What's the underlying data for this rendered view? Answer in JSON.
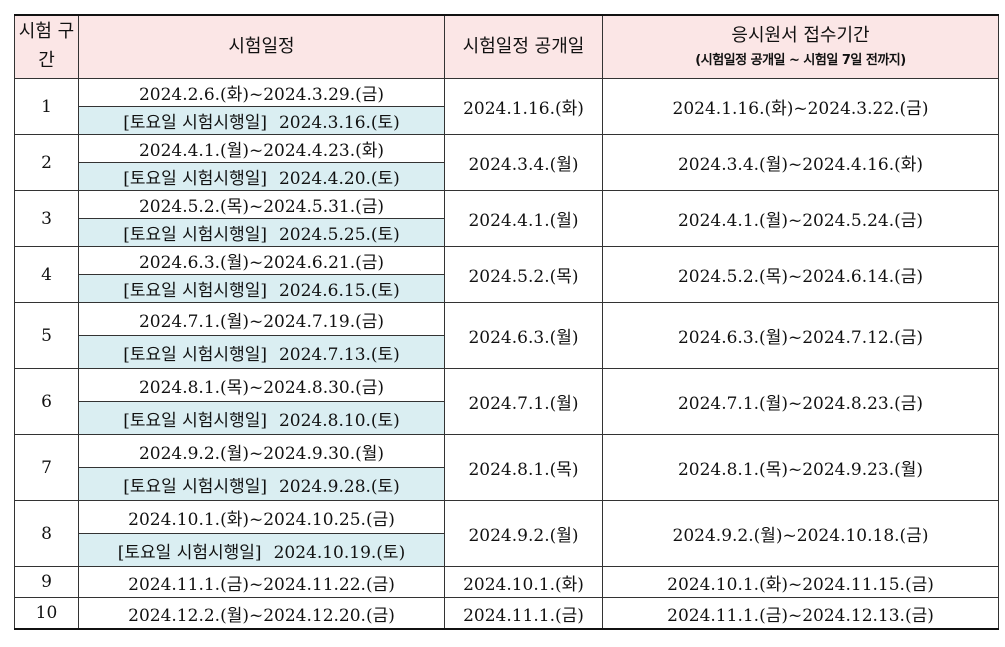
{
  "headers": {
    "period": "시험 구간",
    "schedule": "시험일정",
    "announce": "시험일정 공개일",
    "apply": "응시원서 접수기간",
    "apply_note": "(시험일정 공개일 ~ 시험일 7일 전까지)"
  },
  "rows": [
    {
      "period": "1",
      "schedule": "2024.2.6.(화)~2024.3.29.(금)",
      "saturday_label": "[토요일 시험시행일]",
      "saturday_date": "2024.3.16.(토)",
      "announce": "2024.1.16.(화)",
      "apply": "2024.1.16.(화)~2024.3.22.(금)"
    },
    {
      "period": "2",
      "schedule": "2024.4.1.(월)~2024.4.23.(화)",
      "saturday_label": "[토요일 시험시행일]",
      "saturday_date": "2024.4.20.(토)",
      "announce": "2024.3.4.(월)",
      "apply": "2024.3.4.(월)~2024.4.16.(화)"
    },
    {
      "period": "3",
      "schedule": "2024.5.2.(목)~2024.5.31.(금)",
      "saturday_label": "[토요일 시험시행일]",
      "saturday_date": "2024.5.25.(토)",
      "announce": "2024.4.1.(월)",
      "apply": "2024.4.1.(월)~2024.5.24.(금)"
    },
    {
      "period": "4",
      "schedule": "2024.6.3.(월)~2024.6.21.(금)",
      "saturday_label": "[토요일 시험시행일]",
      "saturday_date": "2024.6.15.(토)",
      "announce": "2024.5.2.(목)",
      "apply": "2024.5.2.(목)~2024.6.14.(금)"
    },
    {
      "period": "5",
      "schedule": "2024.7.1.(월)~2024.7.19.(금)",
      "saturday_label": "[토요일 시험시행일]",
      "saturday_date": "2024.7.13.(토)",
      "announce": "2024.6.3.(월)",
      "apply": "2024.6.3.(월)~2024.7.12.(금)"
    },
    {
      "period": "6",
      "schedule": "2024.8.1.(목)~2024.8.30.(금)",
      "saturday_label": "[토요일 시험시행일]",
      "saturday_date": "2024.8.10.(토)",
      "announce": "2024.7.1.(월)",
      "apply": "2024.7.1.(월)~2024.8.23.(금)"
    },
    {
      "period": "7",
      "schedule": "2024.9.2.(월)~2024.9.30.(월)",
      "saturday_label": "[토요일 시험시행일]",
      "saturday_date": "2024.9.28.(토)",
      "announce": "2024.8.1.(목)",
      "apply": "2024.8.1.(목)~2024.9.23.(월)"
    },
    {
      "period": "8",
      "schedule": "2024.10.1.(화)~2024.10.25.(금)",
      "saturday_label": "[토요일 시험시행일]",
      "saturday_date": "2024.10.19.(토)",
      "announce": "2024.9.2.(월)",
      "apply": "2024.9.2.(월)~2024.10.18.(금)"
    },
    {
      "period": "9",
      "schedule": "2024.11.1.(금)~2024.11.22.(금)",
      "announce": "2024.10.1.(화)",
      "apply": "2024.10.1.(화)~2024.11.15.(금)"
    },
    {
      "period": "10",
      "schedule": "2024.12.2.(월)~2024.12.20.(금)",
      "announce": "2024.11.1.(금)",
      "apply": "2024.11.1.(금)~2024.12.13.(금)"
    }
  ]
}
